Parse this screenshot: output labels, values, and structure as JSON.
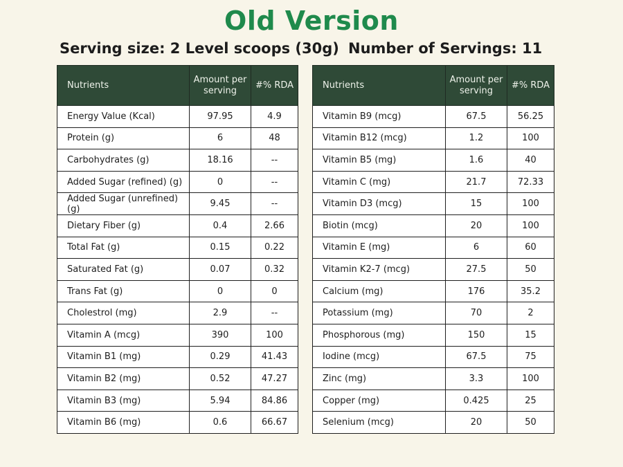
{
  "title": "Old Version",
  "serving_size": "Serving size: 2 Level scoops (30g)",
  "servings_count": "Number of Servings: 11",
  "headers": {
    "nutrients": "Nutrients",
    "amount": "Amount per serving",
    "rda": "#% RDA"
  },
  "left_table": [
    {
      "name": "Energy Value (Kcal)",
      "amount": "97.95",
      "rda": "4.9"
    },
    {
      "name": "Protein (g)",
      "amount": "6",
      "rda": "48"
    },
    {
      "name": "Carbohydrates (g)",
      "amount": "18.16",
      "rda": "--"
    },
    {
      "name": "Added Sugar (refined) (g)",
      "amount": "0",
      "rda": "--"
    },
    {
      "name": "Added Sugar (unrefined) (g)",
      "amount": "9.45",
      "rda": "--"
    },
    {
      "name": "Dietary Fiber (g)",
      "amount": "0.4",
      "rda": "2.66"
    },
    {
      "name": "Total Fat (g)",
      "amount": "0.15",
      "rda": "0.22"
    },
    {
      "name": "Saturated Fat (g)",
      "amount": "0.07",
      "rda": "0.32"
    },
    {
      "name": "Trans Fat (g)",
      "amount": "0",
      "rda": "0"
    },
    {
      "name": "Cholestrol (mg)",
      "amount": "2.9",
      "rda": "--"
    },
    {
      "name": "Vitamin A (mcg)",
      "amount": "390",
      "rda": "100"
    },
    {
      "name": "Vitamin B1 (mg)",
      "amount": "0.29",
      "rda": "41.43"
    },
    {
      "name": "Vitamin B2 (mg)",
      "amount": "0.52",
      "rda": "47.27"
    },
    {
      "name": "Vitamin B3 (mg)",
      "amount": "5.94",
      "rda": "84.86"
    },
    {
      "name": "Vitamin B6 (mg)",
      "amount": "0.6",
      "rda": "66.67"
    }
  ],
  "right_table": [
    {
      "name": "Vitamin B9 (mcg)",
      "amount": "67.5",
      "rda": "56.25"
    },
    {
      "name": "Vitamin B12 (mcg)",
      "amount": "1.2",
      "rda": "100"
    },
    {
      "name": "Vitamin B5 (mg)",
      "amount": "1.6",
      "rda": "40"
    },
    {
      "name": "Vitamin C (mg)",
      "amount": "21.7",
      "rda": "72.33"
    },
    {
      "name": "Vitamin D3 (mcg)",
      "amount": "15",
      "rda": "100"
    },
    {
      "name": "Biotin (mcg)",
      "amount": "20",
      "rda": "100"
    },
    {
      "name": "Vitamin E (mg)",
      "amount": "6",
      "rda": "60"
    },
    {
      "name": "Vitamin K2-7 (mcg)",
      "amount": "27.5",
      "rda": "50"
    },
    {
      "name": "Calcium (mg)",
      "amount": "176",
      "rda": "35.2"
    },
    {
      "name": "Potassium (mg)",
      "amount": "70",
      "rda": "2"
    },
    {
      "name": "Phosphorous (mg)",
      "amount": "150",
      "rda": "15"
    },
    {
      "name": "Iodine (mcg)",
      "amount": "67.5",
      "rda": "75"
    },
    {
      "name": "Zinc (mg)",
      "amount": "3.3",
      "rda": "100"
    },
    {
      "name": "Copper (mg)",
      "amount": "0.425",
      "rda": "25"
    },
    {
      "name": "Selenium (mcg)",
      "amount": "20",
      "rda": "50"
    }
  ],
  "colors": {
    "title": "#1f8a4c",
    "header_bg": "#2f4a37",
    "page_bg": "#f8f5e9"
  }
}
